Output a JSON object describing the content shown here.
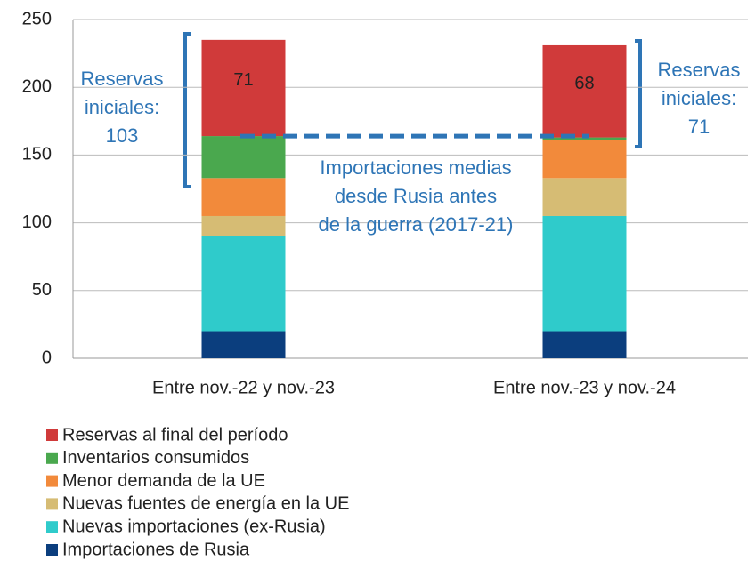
{
  "chart_data": {
    "type": "stacked_bar",
    "categories": [
      "Entre nov.-22 y nov.-23",
      "Entre nov.-23 y nov.-24"
    ],
    "series": [
      {
        "name": "Importaciones de Rusia",
        "color": "#0b3e7e",
        "values": [
          20,
          20
        ]
      },
      {
        "name": "Nuevas importaciones (ex-Rusia)",
        "color": "#2fcbcb",
        "values": [
          70,
          85
        ]
      },
      {
        "name": "Nuevas fuentes de energía en la UE",
        "color": "#d6bc74",
        "values": [
          15,
          28
        ]
      },
      {
        "name": "Menor demanda de la UE",
        "color": "#f28a3b",
        "values": [
          28,
          28
        ]
      },
      {
        "name": "Inventarios consumidos",
        "color": "#4aa84e",
        "values": [
          31,
          2
        ]
      },
      {
        "name": "Reservas al final del período",
        "color": "#d03a3a",
        "values": [
          71,
          68
        ],
        "show_labels": true
      }
    ],
    "ylim": [
      0,
      250
    ],
    "yticks": [
      0,
      50,
      100,
      150,
      200,
      250
    ],
    "grid": true,
    "reference_line": {
      "value": 164,
      "color": "#2e75b6",
      "dashed": true
    },
    "annotations": [
      {
        "lines": [
          "Reservas",
          "iniciales:",
          "103"
        ]
      },
      {
        "lines": [
          "Importaciones medias",
          "desde Rusia antes",
          "de la guerra (2017-21)"
        ]
      },
      {
        "lines": [
          "Reservas",
          "iniciales:",
          "71"
        ]
      }
    ],
    "legend": "bottom-left"
  }
}
